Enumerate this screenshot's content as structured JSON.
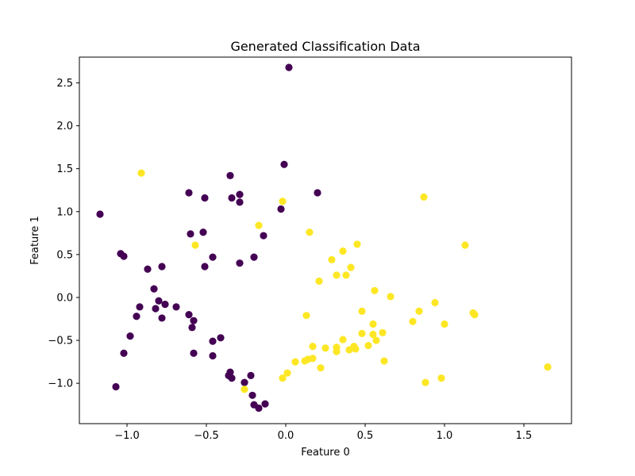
{
  "chart_data": {
    "type": "scatter",
    "title": "Generated Classification Data",
    "xlabel": "Feature 0",
    "ylabel": "Feature 1",
    "xlim": [
      -1.3,
      1.8
    ],
    "ylim": [
      -1.47,
      2.8
    ],
    "xticks": [
      -1.0,
      -0.5,
      0.0,
      0.5,
      1.0,
      1.5
    ],
    "xtick_labels": [
      "−1.0",
      "−0.5",
      "0.0",
      "0.5",
      "1.0",
      "1.5"
    ],
    "yticks": [
      -1.0,
      -0.5,
      0.0,
      0.5,
      1.0,
      1.5,
      2.0,
      2.5
    ],
    "ytick_labels": [
      "−1.0",
      "−0.5",
      "0.0",
      "0.5",
      "1.0",
      "1.5",
      "2.0",
      "2.5"
    ],
    "grid": false,
    "legend": false,
    "series": [
      {
        "color": "#440154",
        "points": [
          [
            0.02,
            2.68
          ],
          [
            -0.01,
            1.55
          ],
          [
            -0.35,
            1.42
          ],
          [
            0.2,
            1.22
          ],
          [
            -0.61,
            1.22
          ],
          [
            -0.29,
            1.2
          ],
          [
            -0.51,
            1.16
          ],
          [
            -0.34,
            1.16
          ],
          [
            -0.29,
            1.11
          ],
          [
            -0.03,
            1.03
          ],
          [
            -1.17,
            0.97
          ],
          [
            -0.52,
            0.76
          ],
          [
            -0.6,
            0.74
          ],
          [
            -0.14,
            0.72
          ],
          [
            -1.04,
            0.51
          ],
          [
            -1.02,
            0.48
          ],
          [
            -0.46,
            0.47
          ],
          [
            -0.2,
            0.47
          ],
          [
            -0.29,
            0.4
          ],
          [
            -0.78,
            0.36
          ],
          [
            -0.51,
            0.36
          ],
          [
            -0.87,
            0.33
          ],
          [
            -0.83,
            0.1
          ],
          [
            -0.8,
            -0.04
          ],
          [
            -0.76,
            -0.08
          ],
          [
            -0.69,
            -0.11
          ],
          [
            -0.92,
            -0.11
          ],
          [
            -0.82,
            -0.13
          ],
          [
            -0.61,
            -0.2
          ],
          [
            -0.94,
            -0.22
          ],
          [
            -0.78,
            -0.24
          ],
          [
            -0.58,
            -0.27
          ],
          [
            -0.59,
            -0.35
          ],
          [
            -0.98,
            -0.45
          ],
          [
            -0.41,
            -0.47
          ],
          [
            -0.46,
            -0.51
          ],
          [
            -1.02,
            -0.65
          ],
          [
            -0.58,
            -0.65
          ],
          [
            -0.46,
            -0.68
          ],
          [
            -0.35,
            -0.87
          ],
          [
            -0.36,
            -0.91
          ],
          [
            -0.22,
            -0.91
          ],
          [
            -0.34,
            -0.94
          ],
          [
            -0.26,
            -0.99
          ],
          [
            -1.07,
            -1.04
          ],
          [
            -0.21,
            -1.14
          ],
          [
            -0.2,
            -1.25
          ],
          [
            -0.13,
            -1.24
          ],
          [
            -0.17,
            -1.29
          ]
        ]
      },
      {
        "color": "#fde725",
        "points": [
          [
            -0.91,
            1.45
          ],
          [
            0.87,
            1.17
          ],
          [
            -0.02,
            1.12
          ],
          [
            -0.17,
            0.84
          ],
          [
            0.15,
            0.76
          ],
          [
            -0.57,
            0.61
          ],
          [
            0.45,
            0.62
          ],
          [
            1.13,
            0.61
          ],
          [
            0.36,
            0.54
          ],
          [
            0.29,
            0.44
          ],
          [
            0.41,
            0.35
          ],
          [
            0.32,
            0.26
          ],
          [
            0.38,
            0.26
          ],
          [
            0.21,
            0.19
          ],
          [
            0.56,
            0.08
          ],
          [
            0.66,
            0.01
          ],
          [
            0.94,
            -0.06
          ],
          [
            0.48,
            -0.16
          ],
          [
            0.84,
            -0.16
          ],
          [
            1.18,
            -0.18
          ],
          [
            1.19,
            -0.2
          ],
          [
            0.13,
            -0.21
          ],
          [
            0.8,
            -0.28
          ],
          [
            1.0,
            -0.31
          ],
          [
            0.55,
            -0.31
          ],
          [
            0.48,
            -0.42
          ],
          [
            0.55,
            -0.43
          ],
          [
            0.61,
            -0.41
          ],
          [
            0.36,
            -0.49
          ],
          [
            0.57,
            -0.5
          ],
          [
            0.52,
            -0.56
          ],
          [
            0.43,
            -0.57
          ],
          [
            0.17,
            -0.57
          ],
          [
            0.32,
            -0.58
          ],
          [
            0.25,
            -0.59
          ],
          [
            0.4,
            -0.61
          ],
          [
            0.44,
            -0.6
          ],
          [
            0.32,
            -0.63
          ],
          [
            0.17,
            -0.71
          ],
          [
            0.14,
            -0.72
          ],
          [
            0.12,
            -0.74
          ],
          [
            0.06,
            -0.75
          ],
          [
            0.62,
            -0.74
          ],
          [
            0.22,
            -0.82
          ],
          [
            1.65,
            -0.81
          ],
          [
            0.01,
            -0.88
          ],
          [
            -0.02,
            -0.94
          ],
          [
            0.88,
            -0.99
          ],
          [
            -0.26,
            -1.07
          ],
          [
            0.98,
            -0.94
          ]
        ]
      }
    ]
  }
}
